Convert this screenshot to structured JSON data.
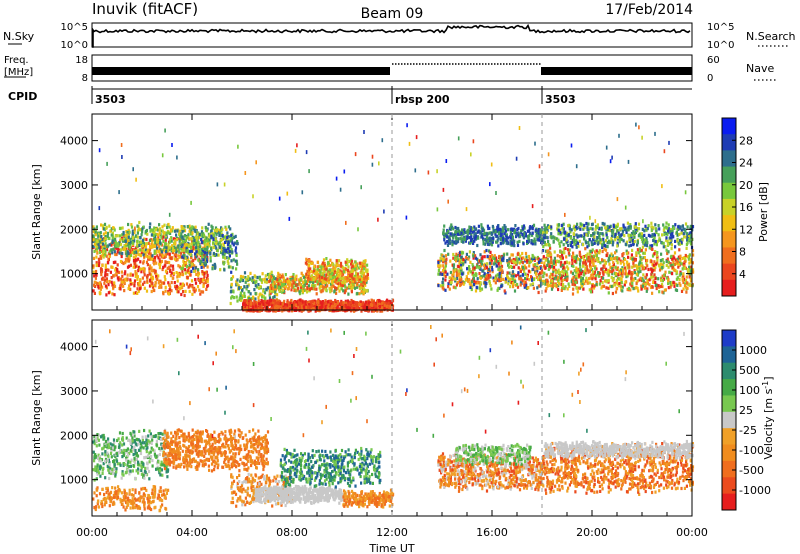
{
  "header": {
    "station": "Inuvik (fitACF)",
    "beam": "Beam 09",
    "date": "17/Feb/2014"
  },
  "panels": {
    "nsky_label": "N.Sky",
    "nsky_ticks": [
      "10^5",
      "10^0"
    ],
    "nsearch_label": "N.Search",
    "nsearch_ticks": [
      "10^5",
      "10^0"
    ],
    "freq_label": "Freq.",
    "freq_unit": "[MHz]",
    "freq_ticks": [
      "18",
      "8"
    ],
    "nave_label": "Nave",
    "nave_ticks": [
      "60",
      "0"
    ],
    "cpid_label": "CPID",
    "cpid_segments": [
      {
        "label": "3503",
        "start_hour": 0
      },
      {
        "label": "rbsp 200",
        "start_hour": 12
      },
      {
        "label": "3503",
        "start_hour": 18
      }
    ]
  },
  "chart_data": [
    {
      "type": "heatmap",
      "ylabel": "Slant Range [km]",
      "y_ticks": [
        1000,
        2000,
        3000,
        4000
      ],
      "ylim": [
        180,
        4600
      ],
      "xlim": [
        0,
        24
      ],
      "colorbar": {
        "label": "Power [dB]",
        "ticks": [
          "4",
          "8",
          "12",
          "16",
          "20",
          "24",
          "28"
        ],
        "colors": [
          "#0a1cf0",
          "#1e3cb4",
          "#2d6e8c",
          "#46a05a",
          "#78c83c",
          "#c8d228",
          "#f0be14",
          "#f5961e",
          "#f06e1e",
          "#eb461e",
          "#e61e1e"
        ]
      }
    },
    {
      "type": "heatmap",
      "ylabel": "Slant Range [km]",
      "xlabel": "Time UT",
      "y_ticks": [
        1000,
        2000,
        3000,
        4000
      ],
      "ylim": [
        180,
        4600
      ],
      "xlim": [
        0,
        24
      ],
      "x_ticks": [
        "00:00",
        "04:00",
        "08:00",
        "12:00",
        "16:00",
        "20:00",
        "00:00"
      ],
      "colorbar": {
        "label": "Velocity [m s",
        "label_sup": "-1",
        "label_end": "]",
        "ticks": [
          "1000",
          "500",
          "100",
          "25",
          "-25",
          "-100",
          "-500",
          "-1000"
        ],
        "colors": [
          "#1e3cc8",
          "#1e6496",
          "#2d8c6e",
          "#46aa46",
          "#78c850",
          "#c8c8c8",
          "#f0a028",
          "#f08c1e",
          "#f06e1e",
          "#eb4b1e",
          "#e61e1e"
        ]
      }
    }
  ]
}
